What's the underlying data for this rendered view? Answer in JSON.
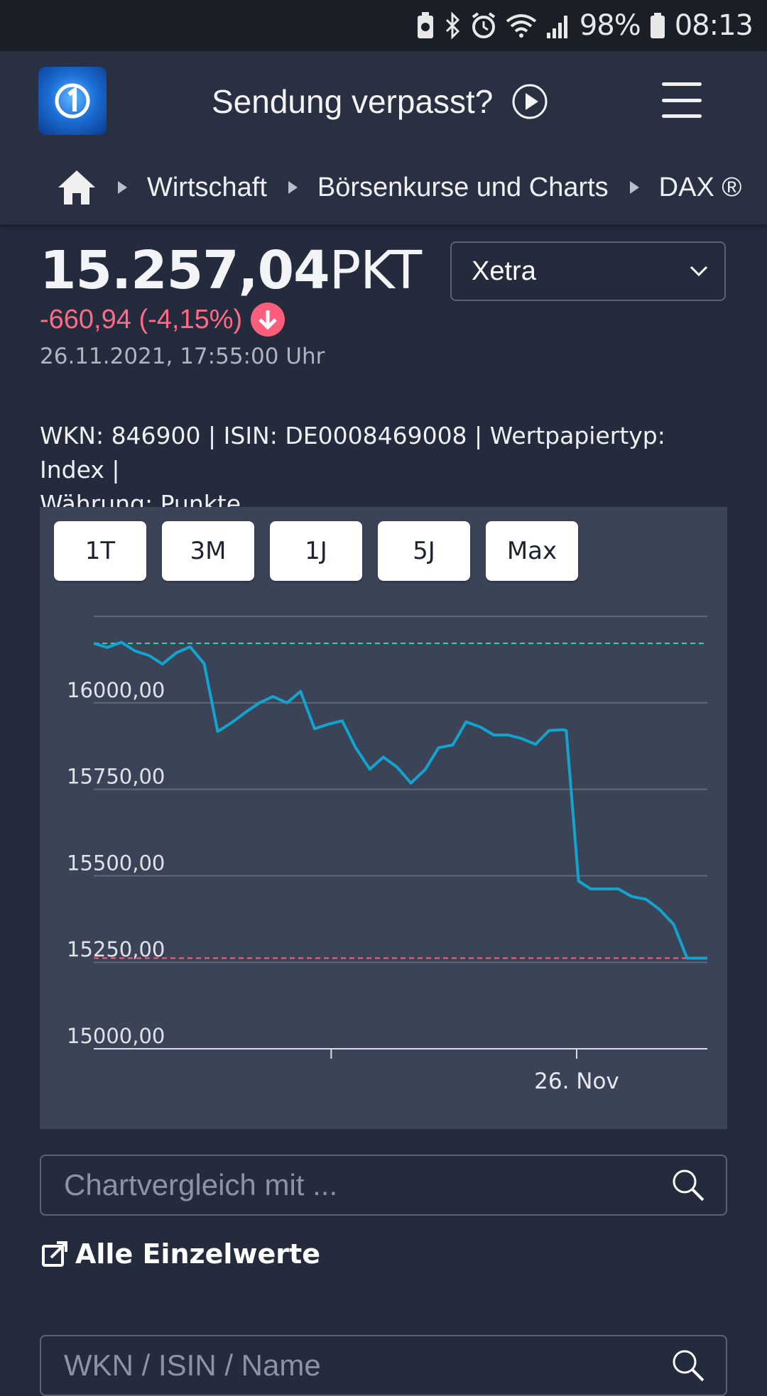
{
  "status_bar": {
    "battery": "98%",
    "time": "08:13"
  },
  "header": {
    "missed_show": "Sendung verpasst?"
  },
  "breadcrumb": {
    "items": [
      "Wirtschaft",
      "Börsenkurse und Charts",
      "DAX ®"
    ]
  },
  "quote": {
    "value": "15.257,04",
    "unit": "PKT",
    "change": "-660,94 (-4,15%)",
    "datetime": "26.11.2021, 17:55:00 Uhr",
    "exchange": "Xetra"
  },
  "meta": {
    "line1": "WKN: 846900 | ISIN: DE0008469008 | Wertpapiertyp: Index |",
    "line2": "Währung: Punkte"
  },
  "range_tabs": [
    "1T",
    "3M",
    "1J",
    "5J",
    "Max"
  ],
  "colors": {
    "line": "#12a3cf",
    "high_ref": "#2dd4a8",
    "low_ref": "#ff5d7c",
    "change_negative": "#ff6a85"
  },
  "chart_data": {
    "type": "line",
    "ylim": [
      15000,
      16250
    ],
    "yticks": [
      16000,
      15750,
      15500,
      15250,
      15000
    ],
    "ytick_labels": [
      "16000,00",
      "15750,00",
      "15500,00",
      "15250,00",
      "15000,00"
    ],
    "x_label": "26. Nov",
    "x_label_position": 0.787,
    "x_mid_tick_position": 0.387,
    "high_reference": 16172,
    "low_reference": 15262,
    "series": [
      {
        "x": [
          0,
          0.022,
          0.045,
          0.067,
          0.09,
          0.112,
          0.135,
          0.157,
          0.18,
          0.202,
          0.225,
          0.247,
          0.27,
          0.292,
          0.315,
          0.337,
          0.36,
          0.382,
          0.405,
          0.427,
          0.45,
          0.472,
          0.495,
          0.517,
          0.54,
          0.562,
          0.585,
          0.607,
          0.63,
          0.652,
          0.675,
          0.697,
          0.72,
          0.742,
          0.765,
          0.77,
          0.79,
          0.81,
          0.832,
          0.855,
          0.877,
          0.9,
          0.922,
          0.945,
          0.967,
          1.0
        ],
        "values": [
          16172,
          16160,
          16175,
          16150,
          16137,
          16112,
          16145,
          16162,
          16113,
          15917,
          15943,
          15972,
          16000,
          16018,
          16000,
          16033,
          15925,
          15938,
          15948,
          15870,
          15808,
          15843,
          15813,
          15768,
          15807,
          15870,
          15878,
          15945,
          15930,
          15907,
          15907,
          15897,
          15880,
          15920,
          15922,
          15920,
          15485,
          15462,
          15462,
          15462,
          15440,
          15432,
          15403,
          15360,
          15262,
          15262
        ]
      }
    ]
  },
  "compare": {
    "placeholder": "Chartvergleich mit ..."
  },
  "all_values_link": "Alle Einzelwerte",
  "wkn_search": {
    "placeholder": "WKN / ISIN / Name"
  }
}
